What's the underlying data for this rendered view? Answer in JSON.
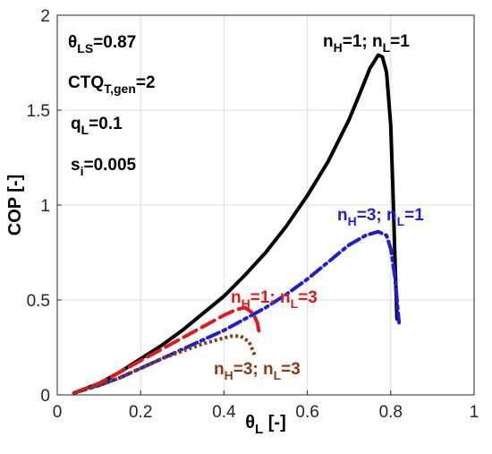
{
  "chart_data": {
    "type": "line",
    "xlabel": {
      "main": "θ",
      "sub": "L",
      "suffix": " [-]"
    },
    "ylabel": "COP [-]",
    "xlim": [
      0,
      1
    ],
    "ylim": [
      0,
      2
    ],
    "x_ticks": [
      "0",
      "0.2",
      "0.4",
      "0.6",
      "0.8",
      "1"
    ],
    "x_tick_values": [
      0,
      0.2,
      0.4,
      0.6,
      0.8,
      1
    ],
    "y_ticks": [
      "0",
      "0.5",
      "1",
      "1.5",
      "2"
    ],
    "y_tick_values": [
      0,
      0.5,
      1,
      1.5,
      2
    ],
    "grid": true,
    "parameters": [
      {
        "main": "θ",
        "sub": "LS",
        "suffix": "=0.87"
      },
      {
        "main": "CTQ",
        "sub": "T,gen",
        "suffix": "=2"
      },
      {
        "main": "q",
        "sub": "L",
        "suffix": "=0.1"
      },
      {
        "main": "s",
        "sub": "i",
        "suffix": "=0.005"
      }
    ],
    "series": [
      {
        "label_parts": [
          "n",
          "H",
          "=1; n",
          "L",
          "=1"
        ],
        "color": "#000000",
        "style": "solid",
        "x": [
          0.04,
          0.1,
          0.15,
          0.2,
          0.25,
          0.3,
          0.35,
          0.4,
          0.45,
          0.5,
          0.55,
          0.6,
          0.65,
          0.7,
          0.73,
          0.75,
          0.77,
          0.78,
          0.79,
          0.8,
          0.805,
          0.81,
          0.815
        ],
        "y": [
          0.01,
          0.06,
          0.12,
          0.19,
          0.26,
          0.34,
          0.43,
          0.52,
          0.63,
          0.75,
          0.89,
          1.05,
          1.23,
          1.45,
          1.61,
          1.72,
          1.79,
          1.78,
          1.7,
          1.42,
          1.1,
          0.72,
          0.4
        ]
      },
      {
        "label_parts": [
          "n",
          "H",
          "=3; n",
          "L",
          "=1"
        ],
        "color": "#1f1fd0",
        "style": "dashdot",
        "x": [
          0.04,
          0.1,
          0.15,
          0.2,
          0.25,
          0.3,
          0.35,
          0.4,
          0.45,
          0.5,
          0.55,
          0.6,
          0.65,
          0.7,
          0.74,
          0.77,
          0.79,
          0.8,
          0.81,
          0.815,
          0.82
        ],
        "y": [
          0.01,
          0.05,
          0.09,
          0.14,
          0.19,
          0.24,
          0.29,
          0.34,
          0.4,
          0.46,
          0.53,
          0.61,
          0.7,
          0.79,
          0.84,
          0.86,
          0.84,
          0.77,
          0.62,
          0.5,
          0.38
        ]
      },
      {
        "label_parts": [
          "n",
          "H",
          "=1; n",
          "L",
          "=3"
        ],
        "color": "#e0191c",
        "style": "dashed",
        "x": [
          0.04,
          0.1,
          0.15,
          0.2,
          0.25,
          0.3,
          0.35,
          0.4,
          0.43,
          0.45,
          0.47,
          0.48,
          0.485
        ],
        "y": [
          0.01,
          0.06,
          0.12,
          0.18,
          0.24,
          0.3,
          0.36,
          0.42,
          0.45,
          0.46,
          0.43,
          0.38,
          0.32
        ]
      },
      {
        "label_parts": [
          "n",
          "H",
          "=3; n",
          "L",
          "=3"
        ],
        "color": "#8b3a16",
        "style": "dotted",
        "x": [
          0.04,
          0.1,
          0.15,
          0.2,
          0.25,
          0.3,
          0.35,
          0.4,
          0.42,
          0.44,
          0.46,
          0.47,
          0.475
        ],
        "y": [
          0.01,
          0.05,
          0.09,
          0.14,
          0.19,
          0.23,
          0.27,
          0.3,
          0.31,
          0.31,
          0.28,
          0.23,
          0.2
        ]
      }
    ]
  }
}
